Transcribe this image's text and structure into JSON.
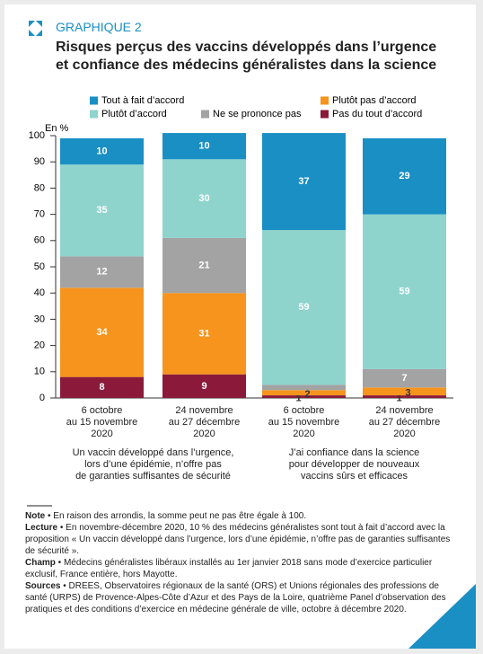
{
  "header": {
    "label": "GRAPHIQUE 2"
  },
  "chart_data": {
    "type": "stacked_bar",
    "title": "Risques perçus des vaccins développés dans l’urgence\net confiance des médecins généralistes dans la science",
    "y_label": "En %",
    "categories": [
      "6 octobre\nau 15 novembre\n2020",
      "24 novembre\nau 27 décembre\n2020",
      "6 octobre\nau 15 novembre\n2020",
      "24 novembre\nau 27 décembre\n2020"
    ],
    "group_labels": [
      "Un vaccin développé dans l’urgence,\nlors d’une épidémie, n’offre pas\nde garanties suffisantes de sécurité",
      "J’ai confiance dans la science\npour développer de nouveaux\nvaccins sûrs et efficaces"
    ],
    "series": [
      {
        "name": "Pas du tout d’accord",
        "color": "#8b1a3a",
        "values": [
          8,
          9,
          1,
          1
        ]
      },
      {
        "name": "Plutôt pas d’accord",
        "color": "#f7941d",
        "values": [
          34,
          31,
          2,
          3
        ]
      },
      {
        "name": "Ne se prononce pas",
        "color": "#a3a3a3",
        "values": [
          12,
          21,
          2,
          7
        ]
      },
      {
        "name": "Plutôt d’accord",
        "color": "#8fd3cd",
        "values": [
          35,
          30,
          59,
          59
        ]
      },
      {
        "name": "Tout à fait d’accord",
        "color": "#1a8fc4",
        "values": [
          10,
          10,
          37,
          29
        ]
      }
    ],
    "ylim": [
      0,
      100
    ],
    "yticks": [
      0,
      10,
      20,
      30,
      40,
      50,
      60,
      70,
      80,
      90,
      100
    ]
  },
  "notes": [
    {
      "label": "Note",
      "text": " • En raison des arrondis, la somme peut ne pas être égale à 100."
    },
    {
      "label": "Lecture",
      "text": " • En novembre-décembre 2020, 10 % des médecins généralistes sont tout à fait d’accord avec la proposition « Un vaccin développé dans l’urgence, lors d’une épidémie, n’offre pas de garanties suffisantes de sécurité »."
    },
    {
      "label": "Champ",
      "text": " • Médecins généralistes libéraux installés au 1er janvier 2018 sans mode d’exercice particulier exclusif, France entière, hors Mayotte."
    },
    {
      "label": "Sources",
      "text": " • DREES, Observatoires régionaux de la santé (ORS) et Unions régionales des professions de santé (URPS) de Provence-Alpes-Côte d’Azur et des Pays de la Loire, quatrième Panel d’observation des pratiques et des conditions d’exercice en médecine générale de ville, octobre à décembre 2020."
    }
  ]
}
